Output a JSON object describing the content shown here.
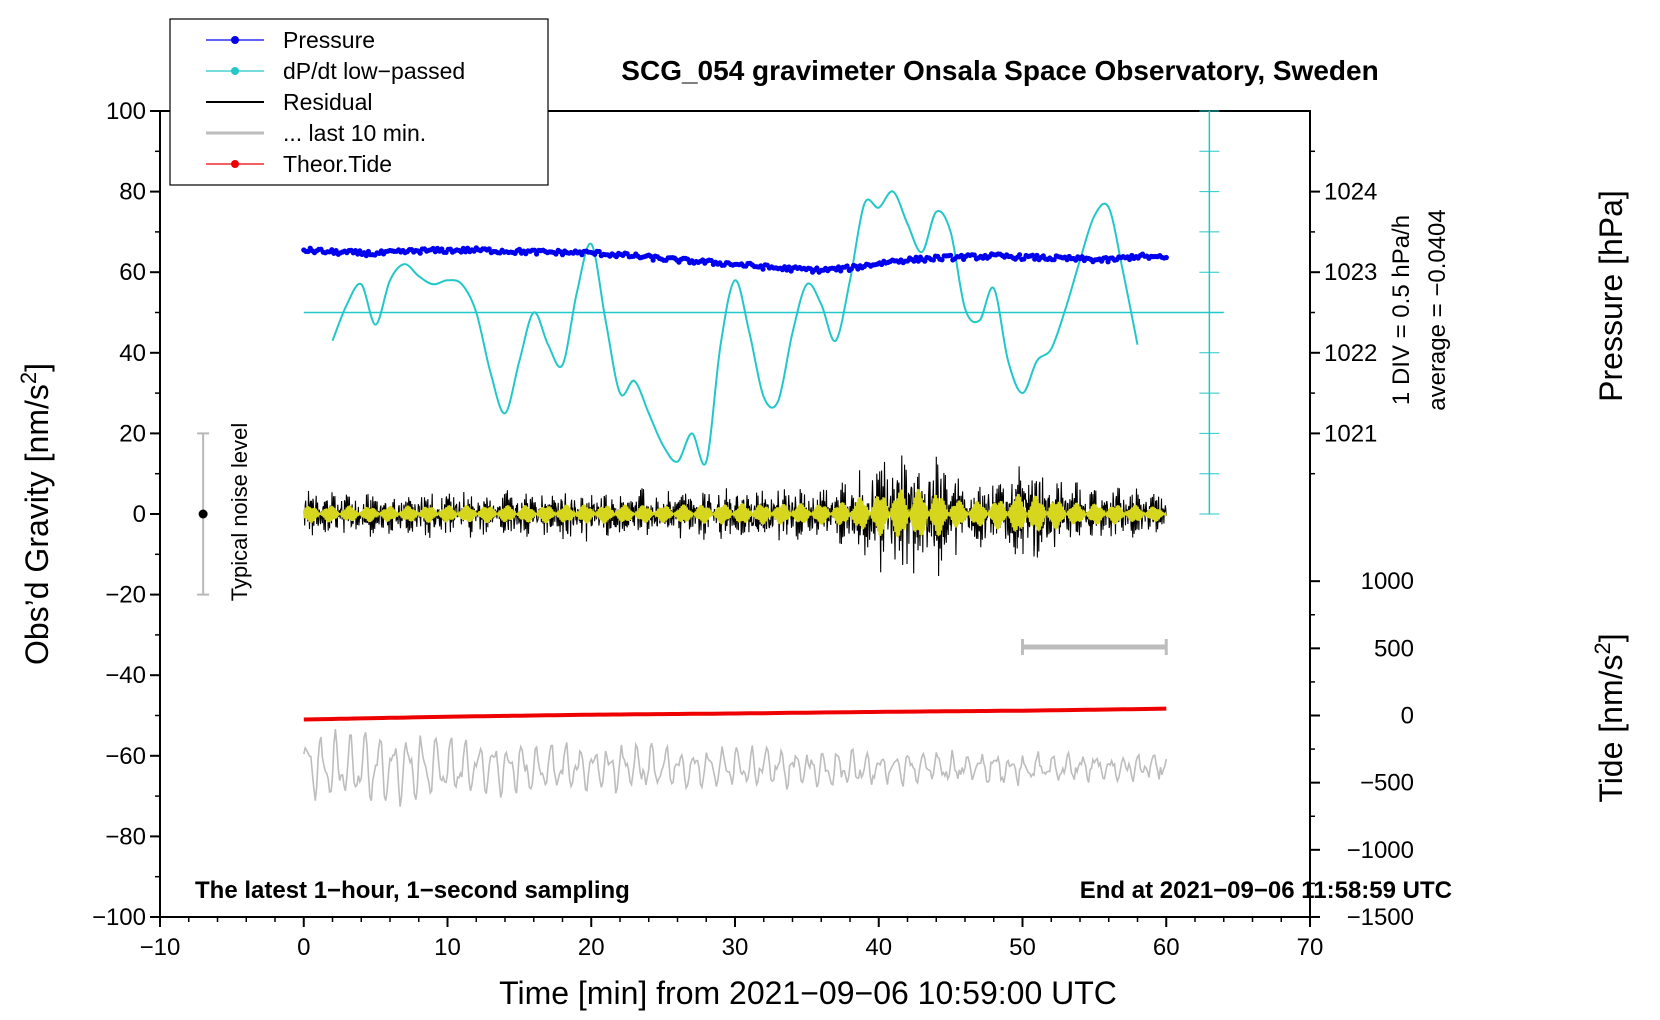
{
  "chart_data": {
    "type": "line",
    "title": "SCG_054 gravimeter Onsala Space Observatory, Sweden",
    "xlabel": "Time [min] from 2021−09−06 10:59:00 UTC",
    "xlim": [
      -10,
      70
    ],
    "x_ticks": [
      -10,
      0,
      10,
      20,
      30,
      40,
      50,
      60,
      70
    ],
    "x_tick_labels": [
      "−10",
      "0",
      "10",
      "20",
      "30",
      "40",
      "50",
      "60",
      "70"
    ],
    "left_axis": {
      "label_main": "Obs’d Gravity [nm/s",
      "label_sup": "2",
      "label_end": "]",
      "ylim": [
        -100,
        100
      ],
      "ticks": [
        -100,
        -80,
        -60,
        -40,
        -20,
        0,
        20,
        40,
        60,
        80,
        100
      ],
      "tick_labels": [
        "−100",
        "−80",
        "−60",
        "−40",
        "−20",
        "0",
        "20",
        "40",
        "60",
        "80",
        "100"
      ]
    },
    "pressure_axis": {
      "label": "Pressure [hPa]",
      "ticks": [
        1021,
        1022,
        1023,
        1024
      ],
      "tick_labels": [
        "1021",
        "1022",
        "1023",
        "1024"
      ],
      "gravity_at_1020": 0,
      "gravity_per_hPa": 20
    },
    "tide_axis": {
      "label_main": "Tide [nm/s",
      "label_sup": "2",
      "label_end": "]",
      "ticks": [
        -1500,
        -1000,
        -500,
        0,
        500,
        1000
      ],
      "tick_labels": [
        "−1500",
        "−1000",
        "−500",
        "0",
        "500",
        "1000"
      ],
      "gravity_at_0": -50,
      "gravity_per_unit": 0.03333
    },
    "dpdt_axis": {
      "label_div": "1 DIV = 0.5 hPa/h",
      "label_avg": "average = −0.0404",
      "x": 63,
      "range": [
        0,
        100
      ],
      "div": 10,
      "zero_line": 50
    },
    "series": [
      {
        "name": "Pressure",
        "color": "#0000ee",
        "style": "dots",
        "x": [
          0,
          2,
          5,
          8,
          12,
          16,
          20,
          23,
          26,
          30,
          33,
          36,
          38,
          41,
          44,
          48,
          52,
          56,
          58,
          60
        ],
        "values": [
          65.5,
          65,
          64.6,
          65.3,
          65.5,
          65,
          64.8,
          64,
          63,
          62,
          61,
          60.5,
          61,
          62.8,
          63.5,
          64,
          63.5,
          63,
          64,
          63.5
        ]
      },
      {
        "name": "dP/dt low−passed",
        "color": "#22c8c8",
        "style": "line",
        "x": [
          2,
          3,
          4,
          5,
          6,
          7,
          8,
          9,
          10,
          11,
          12,
          13,
          14,
          15,
          16,
          17,
          18,
          19,
          20,
          21,
          22,
          23,
          24,
          25,
          26,
          27,
          28,
          29,
          30,
          31,
          32,
          33,
          34,
          35,
          36,
          37,
          38,
          39,
          40,
          41,
          42,
          43,
          44,
          45,
          46,
          47,
          48,
          49,
          50,
          51,
          52,
          53,
          54,
          55,
          56,
          57,
          58
        ],
        "values": [
          43,
          52,
          57,
          47,
          58,
          62,
          59,
          57,
          58,
          57,
          50,
          35,
          25,
          38,
          50,
          42,
          37,
          55,
          67,
          48,
          30,
          33,
          25,
          17,
          13,
          20,
          13,
          42,
          58,
          45,
          29,
          28,
          45,
          57,
          52,
          43,
          58,
          77,
          76,
          80,
          72,
          65,
          75,
          70,
          51,
          48,
          56,
          38,
          30,
          38,
          41,
          51,
          63,
          74,
          76,
          60,
          42
        ]
      },
      {
        "name": "Residual",
        "color": "#000000",
        "style": "line",
        "x": [
          0,
          5,
          10,
          15,
          20,
          25,
          30,
          35,
          37,
          38,
          40,
          42,
          43,
          44,
          45,
          46,
          48,
          50,
          52,
          54,
          56,
          58,
          60
        ],
        "amplitude": [
          5,
          4.5,
          5,
          5,
          5.5,
          5,
          6,
          6,
          6,
          8,
          12,
          15,
          14,
          13,
          9,
          7,
          8,
          12,
          9,
          6,
          6,
          5,
          4
        ]
      },
      {
        "name": "... last 10 min.",
        "color": "#bdbdbd",
        "style": "line",
        "x": [
          0,
          5,
          10,
          15,
          20,
          30,
          40,
          50,
          60
        ],
        "amplitude": [
          9,
          10,
          8,
          7,
          6,
          5,
          4,
          3.5,
          3
        ],
        "center": -63
      },
      {
        "name": "Theor.Tide",
        "color": "#ee0000",
        "style": "line",
        "x": [
          0,
          10,
          20,
          30,
          40,
          50,
          60
        ],
        "values": [
          -51,
          -50.3,
          -49.8,
          -49.5,
          -49.1,
          -48.8,
          -48.3
        ]
      }
    ],
    "legend": {
      "position": "top-left",
      "entries": [
        "Pressure",
        "dP/dt low−passed",
        "Residual",
        "... last 10 min.",
        "Theor.Tide"
      ]
    },
    "annotations": {
      "noise_label": "Typical noise level",
      "noise_center": 0,
      "noise_half_range": 20,
      "noise_x": -7,
      "sampling_label": "The latest 1−hour, 1−second sampling",
      "end_label": "End at 2021−09−06 11:58:59 UTC",
      "last10_bar": [
        50,
        60
      ],
      "last10_bar_y": -33
    }
  }
}
